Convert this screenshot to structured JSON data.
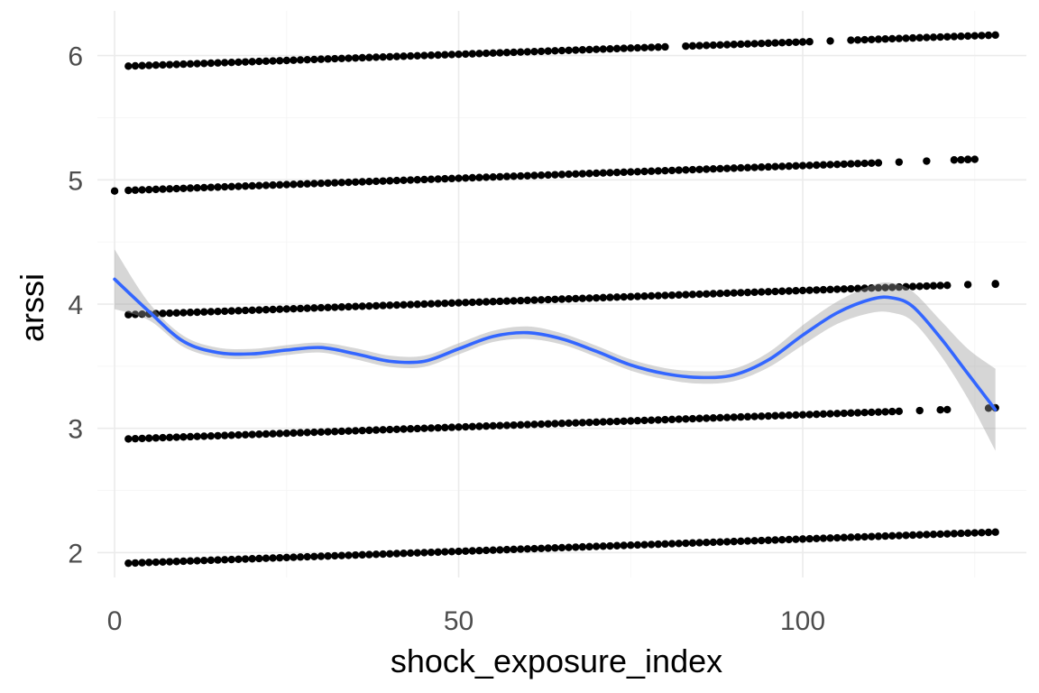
{
  "chart_data": {
    "type": "scatter",
    "xlabel": "shock_exposure_index",
    "ylabel": "arssi",
    "xlim": [
      -2.5,
      132.5
    ],
    "ylim": [
      1.8,
      6.36
    ],
    "x_ticks": [
      0,
      50,
      100
    ],
    "y_ticks": [
      2,
      3,
      4,
      5,
      6
    ],
    "grid": true,
    "legend": "none",
    "point_color": "#000000",
    "smooth_color": "#3366ff",
    "band_color": "#999999",
    "point_bands": [
      {
        "level": 2,
        "x_start": 2,
        "x_end": 128,
        "y_start": 1.915,
        "y_end": 2.165,
        "gaps": []
      },
      {
        "level": 3,
        "x_start": 2,
        "x_end": 128,
        "y_start": 2.915,
        "y_end": 3.165,
        "gaps": [
          [
            115,
            116
          ],
          [
            118,
            119
          ],
          [
            122,
            126
          ]
        ]
      },
      {
        "level": 4,
        "x_start": 2,
        "x_end": 128,
        "y_start": 3.915,
        "y_end": 4.165,
        "gaps": [
          [
            122,
            123
          ],
          [
            125,
            127
          ]
        ]
      },
      {
        "level": 5,
        "x_start": 2,
        "x_end": 125,
        "y_start": 4.915,
        "y_end": 5.165,
        "gaps": [
          [
            112,
            113
          ],
          [
            115,
            117
          ],
          [
            119,
            122
          ]
        ]
      },
      {
        "level": 6,
        "x_start": 2,
        "x_end": 128,
        "y_start": 5.915,
        "y_end": 6.165,
        "gaps": [
          [
            81,
            82
          ],
          [
            102,
            103
          ],
          [
            105,
            106
          ]
        ]
      }
    ],
    "extra_points": [
      {
        "x": 0,
        "y": 4.91
      },
      {
        "x": 122,
        "y": 5.16
      },
      {
        "x": 124,
        "y": 5.165
      },
      {
        "x": 128,
        "y": 4.16
      }
    ],
    "smooth": {
      "x": [
        0,
        5,
        10,
        15,
        20,
        25,
        30,
        35,
        40,
        45,
        50,
        55,
        60,
        65,
        70,
        75,
        80,
        85,
        90,
        95,
        100,
        105,
        110,
        113,
        116,
        120,
        124,
        128
      ],
      "y": [
        4.2,
        3.94,
        3.7,
        3.61,
        3.6,
        3.63,
        3.65,
        3.6,
        3.54,
        3.54,
        3.64,
        3.74,
        3.77,
        3.72,
        3.62,
        3.51,
        3.44,
        3.41,
        3.43,
        3.55,
        3.75,
        3.93,
        4.04,
        4.05,
        3.98,
        3.73,
        3.44,
        3.15
      ],
      "se": [
        0.24,
        0.07,
        0.045,
        0.04,
        0.04,
        0.04,
        0.04,
        0.045,
        0.045,
        0.045,
        0.045,
        0.045,
        0.05,
        0.045,
        0.045,
        0.045,
        0.045,
        0.05,
        0.05,
        0.06,
        0.08,
        0.09,
        0.11,
        0.12,
        0.12,
        0.14,
        0.2,
        0.33
      ]
    }
  }
}
